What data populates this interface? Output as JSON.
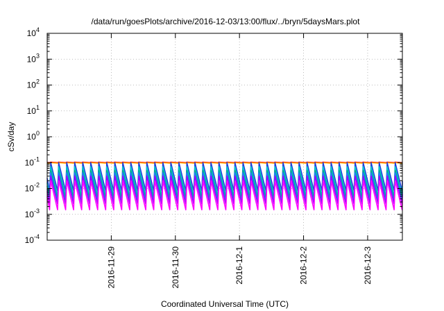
{
  "chart_data": {
    "type": "line",
    "title": "/data/run/goesPlots/archive/2016-12-03/13:00/flux/../bryn/5daysMars.plot",
    "xlabel": "Coordinated Universal Time (UTC)",
    "ylabel": "cSv/day",
    "y_scale": "log",
    "ylim": [
      0.0001,
      10000
    ],
    "y_ticks": [
      {
        "value": 0.0001,
        "base": "10",
        "exp": "-4"
      },
      {
        "value": 0.001,
        "base": "10",
        "exp": "-3"
      },
      {
        "value": 0.01,
        "base": "10",
        "exp": "-2"
      },
      {
        "value": 0.1,
        "base": "10",
        "exp": "-1"
      },
      {
        "value": 1,
        "base": "10",
        "exp": "0"
      },
      {
        "value": 10,
        "base": "10",
        "exp": "1"
      },
      {
        "value": 100,
        "base": "10",
        "exp": "2"
      },
      {
        "value": 1000,
        "base": "10",
        "exp": "3"
      },
      {
        "value": 10000,
        "base": "10",
        "exp": "4"
      }
    ],
    "xlim": [
      "2016-11-28 00:00",
      "2016-12-03 13:00"
    ],
    "x_ticks": [
      "2016-11-29",
      "2016-11-30",
      "2016-12-1",
      "2016-12-2",
      "2016-12-3"
    ],
    "grid": true,
    "cycles_per_day": 8,
    "series": [
      {
        "color": "#ff0000",
        "peak": 0.105,
        "trough": 0.1
      },
      {
        "color": "#ffa500",
        "peak": 0.1,
        "trough": 0.095
      },
      {
        "color": "#1e3cdc",
        "peak": 0.1,
        "trough": 0.008
      },
      {
        "color": "#00cccc",
        "peak": 0.07,
        "trough": 0.005
      },
      {
        "color": "#00aa88",
        "peak": 0.05,
        "trough": 0.004
      },
      {
        "color": "#2878ff",
        "peak": 0.04,
        "trough": 0.003
      },
      {
        "color": "#9900ff",
        "peak": 0.03,
        "trough": 0.0025
      },
      {
        "color": "#ff00ff",
        "peak": 0.02,
        "trough": 0.0015
      }
    ]
  }
}
